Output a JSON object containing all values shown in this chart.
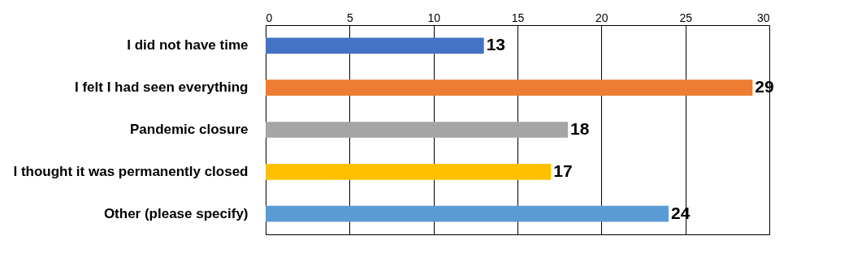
{
  "chart_data": {
    "type": "bar",
    "orientation": "horizontal",
    "categories": [
      "I did not have time",
      "I felt I had seen everything",
      "Pandemic closure",
      "I thought it was permanently closed",
      "Other (please specify)"
    ],
    "values": [
      13,
      29,
      18,
      17,
      24
    ],
    "colors": [
      "#4472c4",
      "#ed7d31",
      "#a5a5a5",
      "#ffc000",
      "#5b9bd5"
    ],
    "xlim": [
      0,
      30
    ],
    "xticks": [
      0,
      5,
      10,
      15,
      20,
      25,
      30
    ],
    "grid": "x",
    "data_labels": true
  }
}
